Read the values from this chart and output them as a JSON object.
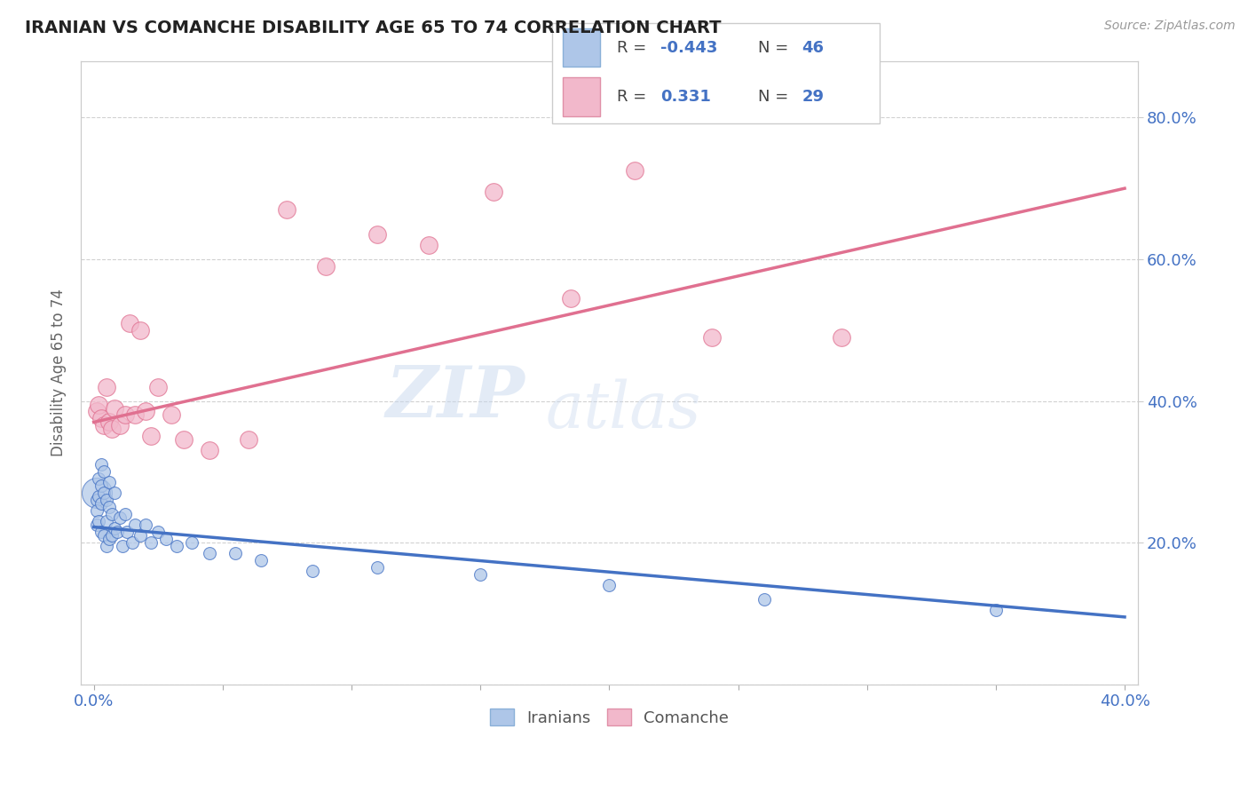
{
  "title": "IRANIAN VS COMANCHE DISABILITY AGE 65 TO 74 CORRELATION CHART",
  "source": "Source: ZipAtlas.com",
  "ylabel": "Disability Age 65 to 74",
  "xlim": [
    -0.005,
    0.405
  ],
  "ylim": [
    0.0,
    0.88
  ],
  "legend_R_blue": "-0.443",
  "legend_N_blue": "46",
  "legend_R_pink": " 0.331",
  "legend_N_pink": "29",
  "blue_color": "#aec6e8",
  "blue_line_color": "#4472c4",
  "pink_color": "#f2b8cb",
  "pink_line_color": "#e07090",
  "watermark_zip": "ZIP",
  "watermark_atlas": "atlas",
  "background_color": "#ffffff",
  "grid_color": "#cccccc",
  "iranians_x": [
    0.001,
    0.001,
    0.001,
    0.002,
    0.002,
    0.002,
    0.003,
    0.003,
    0.003,
    0.003,
    0.004,
    0.004,
    0.004,
    0.005,
    0.005,
    0.005,
    0.006,
    0.006,
    0.006,
    0.007,
    0.007,
    0.008,
    0.008,
    0.009,
    0.01,
    0.011,
    0.012,
    0.013,
    0.015,
    0.016,
    0.018,
    0.02,
    0.022,
    0.025,
    0.028,
    0.032,
    0.038,
    0.045,
    0.055,
    0.065,
    0.085,
    0.11,
    0.15,
    0.2,
    0.26,
    0.35
  ],
  "iranians_y": [
    0.26,
    0.245,
    0.225,
    0.29,
    0.265,
    0.23,
    0.31,
    0.28,
    0.255,
    0.215,
    0.3,
    0.27,
    0.21,
    0.26,
    0.23,
    0.195,
    0.285,
    0.25,
    0.205,
    0.24,
    0.21,
    0.27,
    0.22,
    0.215,
    0.235,
    0.195,
    0.24,
    0.215,
    0.2,
    0.225,
    0.21,
    0.225,
    0.2,
    0.215,
    0.205,
    0.195,
    0.2,
    0.185,
    0.185,
    0.175,
    0.16,
    0.165,
    0.155,
    0.14,
    0.12,
    0.105
  ],
  "iranians_x_large": [
    0.001
  ],
  "iranians_y_large": [
    0.27
  ],
  "comanche_x": [
    0.001,
    0.002,
    0.003,
    0.004,
    0.005,
    0.006,
    0.007,
    0.008,
    0.01,
    0.012,
    0.014,
    0.016,
    0.018,
    0.02,
    0.022,
    0.025,
    0.03,
    0.035,
    0.045,
    0.06,
    0.075,
    0.09,
    0.11,
    0.13,
    0.155,
    0.185,
    0.21,
    0.24,
    0.29
  ],
  "comanche_y": [
    0.385,
    0.395,
    0.375,
    0.365,
    0.42,
    0.37,
    0.36,
    0.39,
    0.365,
    0.38,
    0.51,
    0.38,
    0.5,
    0.385,
    0.35,
    0.42,
    0.38,
    0.345,
    0.33,
    0.345,
    0.67,
    0.59,
    0.635,
    0.62,
    0.695,
    0.545,
    0.725,
    0.49,
    0.49
  ],
  "blue_trend_x": [
    0.0,
    0.4
  ],
  "blue_trend_y": [
    0.222,
    0.095
  ],
  "pink_trend_x": [
    0.0,
    0.4
  ],
  "pink_trend_y": [
    0.37,
    0.7
  ]
}
